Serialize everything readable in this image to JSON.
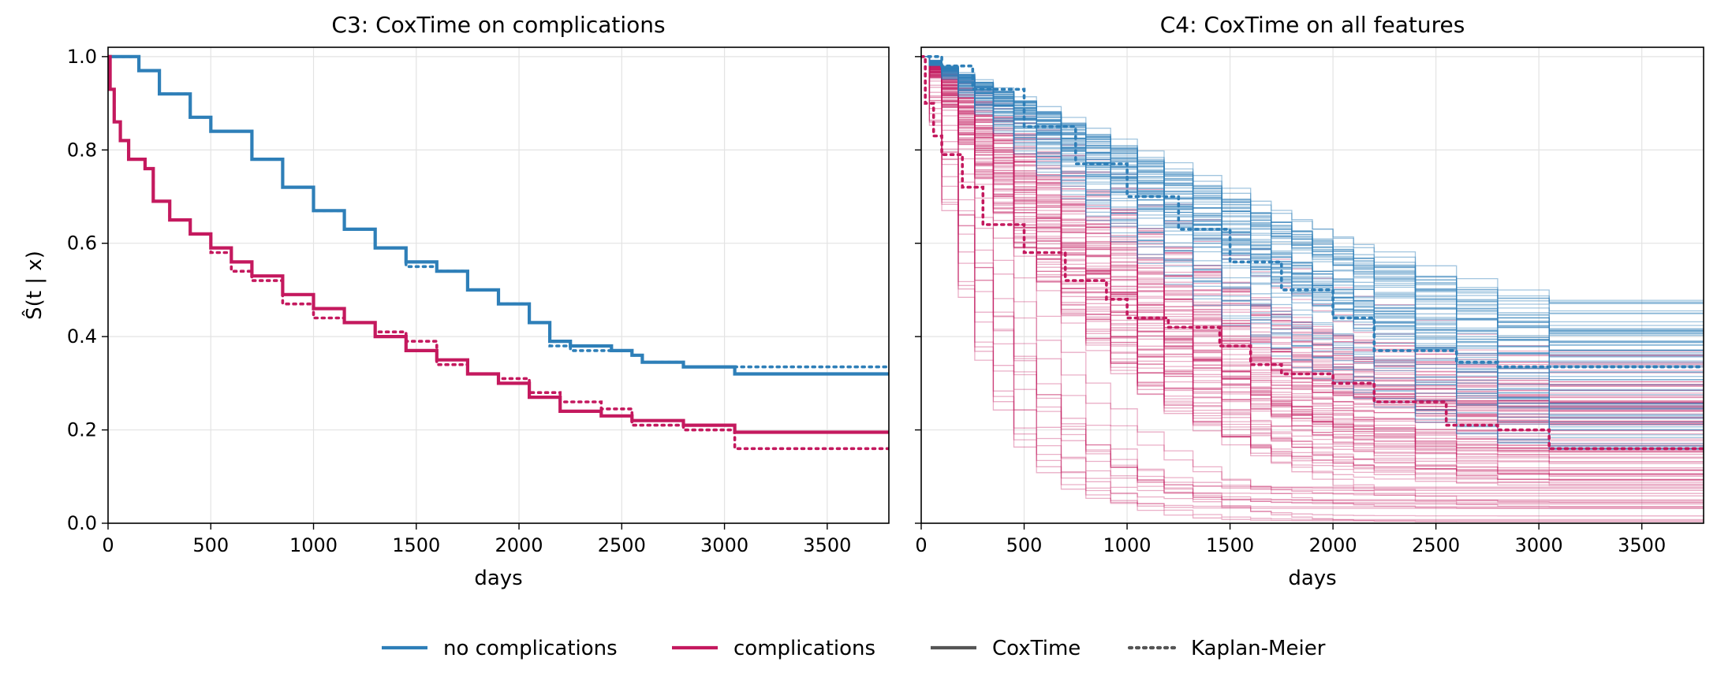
{
  "colors": {
    "no_complications": "#2e7fb8",
    "complications": "#c4195e",
    "neutral": "#555555",
    "grid": "#e3e3e3"
  },
  "legend": {
    "placement": "bottom-center",
    "entries": [
      {
        "label": "no complications",
        "color": "#2e7fb8",
        "style": "solid"
      },
      {
        "label": "complications",
        "color": "#c4195e",
        "style": "solid"
      },
      {
        "label": "CoxTime",
        "color": "#555555",
        "style": "solid"
      },
      {
        "label": "Kaplan-Meier",
        "color": "#555555",
        "style": "dotted"
      }
    ]
  },
  "chart_data": [
    {
      "type": "line",
      "title": "C3: CoxTime on complications",
      "xlabel": "days",
      "ylabel": "Ŝ(t | x)",
      "xlim": [
        0,
        3800
      ],
      "ylim": [
        0,
        1.02
      ],
      "xticks": [
        "0",
        "500",
        "1000",
        "1500",
        "2000",
        "2500",
        "3000",
        "3500"
      ],
      "yticks": [
        "0.0",
        "0.2",
        "0.4",
        "0.6",
        "0.8",
        "1.0"
      ],
      "grid": true,
      "series": [
        {
          "name": "no complications",
          "model": "CoxTime",
          "style": "solid",
          "color": "#2e7fb8",
          "x": [
            0,
            80,
            150,
            250,
            400,
            500,
            700,
            850,
            1000,
            1150,
            1300,
            1450,
            1600,
            1750,
            1900,
            2050,
            2150,
            2250,
            2450,
            2550,
            2600,
            2800,
            3050,
            3800
          ],
          "y": [
            1.0,
            1.0,
            0.97,
            0.92,
            0.87,
            0.84,
            0.78,
            0.72,
            0.67,
            0.63,
            0.59,
            0.56,
            0.54,
            0.5,
            0.47,
            0.43,
            0.39,
            0.38,
            0.37,
            0.36,
            0.345,
            0.335,
            0.32,
            0.32
          ]
        },
        {
          "name": "no complications",
          "model": "Kaplan-Meier",
          "style": "dotted",
          "color": "#2e7fb8",
          "x": [
            0,
            80,
            150,
            250,
            400,
            500,
            700,
            850,
            1000,
            1150,
            1300,
            1450,
            1600,
            1750,
            1900,
            2050,
            2150,
            2250,
            2450,
            2550,
            2600,
            2800,
            3050,
            3800
          ],
          "y": [
            1.0,
            1.0,
            0.97,
            0.92,
            0.87,
            0.84,
            0.78,
            0.72,
            0.67,
            0.63,
            0.59,
            0.55,
            0.54,
            0.5,
            0.47,
            0.43,
            0.38,
            0.37,
            0.37,
            0.36,
            0.345,
            0.335,
            0.335,
            0.335
          ]
        },
        {
          "name": "complications",
          "model": "CoxTime",
          "style": "solid",
          "color": "#c4195e",
          "x": [
            0,
            10,
            30,
            60,
            100,
            120,
            180,
            220,
            300,
            400,
            500,
            600,
            700,
            850,
            1000,
            1150,
            1300,
            1450,
            1600,
            1750,
            1900,
            2050,
            2200,
            2400,
            2550,
            2800,
            3050,
            3800
          ],
          "y": [
            1.0,
            0.93,
            0.86,
            0.82,
            0.78,
            0.78,
            0.76,
            0.69,
            0.65,
            0.62,
            0.59,
            0.56,
            0.53,
            0.49,
            0.46,
            0.43,
            0.4,
            0.37,
            0.35,
            0.32,
            0.3,
            0.27,
            0.24,
            0.23,
            0.22,
            0.21,
            0.195,
            0.195
          ]
        },
        {
          "name": "complications",
          "model": "Kaplan-Meier",
          "style": "dotted",
          "color": "#c4195e",
          "x": [
            0,
            10,
            30,
            60,
            100,
            120,
            180,
            220,
            300,
            400,
            500,
            600,
            700,
            850,
            1000,
            1150,
            1300,
            1450,
            1600,
            1750,
            1900,
            2050,
            2200,
            2400,
            2550,
            2800,
            3050,
            3800
          ],
          "y": [
            1.0,
            0.93,
            0.86,
            0.82,
            0.78,
            0.78,
            0.76,
            0.69,
            0.65,
            0.62,
            0.58,
            0.54,
            0.52,
            0.47,
            0.44,
            0.43,
            0.41,
            0.39,
            0.34,
            0.32,
            0.31,
            0.28,
            0.26,
            0.245,
            0.21,
            0.2,
            0.16,
            0.16
          ]
        }
      ]
    },
    {
      "type": "line",
      "title": "C4: CoxTime on all features",
      "xlabel": "days",
      "ylabel": "",
      "xlim": [
        0,
        3800
      ],
      "ylim": [
        0,
        1.02
      ],
      "xticks": [
        "0",
        "500",
        "1000",
        "1500",
        "2000",
        "2500",
        "3000",
        "3500"
      ],
      "yticks": [
        "0.0",
        "0.2",
        "0.4",
        "0.6",
        "0.8",
        "1.0"
      ],
      "grid": true,
      "individual_curves": {
        "no_complications": {
          "count": 70,
          "color": "#2e7fb8",
          "final_survival_range": [
            0.15,
            0.48
          ]
        },
        "complications": {
          "count": 110,
          "color": "#c4195e",
          "final_survival_range": [
            0.0,
            0.37
          ]
        }
      },
      "series": [
        {
          "name": "no complications",
          "model": "Kaplan-Meier",
          "style": "dotted",
          "color": "#2e7fb8",
          "x": [
            0,
            100,
            250,
            500,
            750,
            1000,
            1250,
            1500,
            1750,
            2000,
            2200,
            2600,
            2800,
            3050,
            3800
          ],
          "y": [
            1.0,
            0.98,
            0.93,
            0.85,
            0.77,
            0.7,
            0.63,
            0.56,
            0.5,
            0.44,
            0.37,
            0.345,
            0.335,
            0.335,
            0.335
          ]
        },
        {
          "name": "complications",
          "model": "Kaplan-Meier",
          "style": "dotted",
          "color": "#c4195e",
          "x": [
            0,
            20,
            60,
            100,
            200,
            300,
            500,
            700,
            900,
            1000,
            1200,
            1450,
            1600,
            1750,
            2000,
            2200,
            2550,
            2800,
            3050,
            3800
          ],
          "y": [
            1.0,
            0.9,
            0.83,
            0.79,
            0.72,
            0.64,
            0.58,
            0.52,
            0.48,
            0.44,
            0.42,
            0.38,
            0.34,
            0.32,
            0.3,
            0.26,
            0.21,
            0.2,
            0.16,
            0.16
          ]
        }
      ]
    }
  ]
}
